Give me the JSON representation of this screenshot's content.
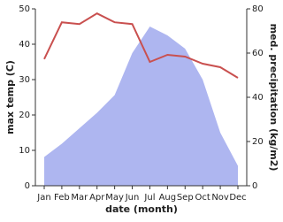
{
  "chart_data": {
    "type": "line",
    "xlabel": "date (month)",
    "ylabel": "max temp (C)",
    "y2label": "med. precipitation (kg/m2)",
    "categories": [
      "Jan",
      "Feb",
      "Mar",
      "Apr",
      "May",
      "Jun",
      "Jul",
      "Aug",
      "Sep",
      "Oct",
      "Nov",
      "Dec"
    ],
    "series": [
      {
        "type": "area",
        "axis": "y2",
        "color": "#aeb6f0",
        "values": [
          13,
          19,
          26,
          33,
          41,
          60,
          72,
          68,
          62,
          48,
          24,
          9
        ]
      },
      {
        "type": "line",
        "axis": "y",
        "color": "#c9504f",
        "values": [
          35.8,
          46.2,
          45.7,
          48.7,
          46.2,
          45.7,
          35,
          37,
          36.5,
          34.5,
          33.5,
          30.5
        ]
      }
    ],
    "ylim": [
      0,
      50
    ],
    "yticks": [
      0,
      10,
      20,
      30,
      40,
      50
    ],
    "y2lim": [
      0,
      80
    ],
    "y2ticks": [
      0,
      20,
      40,
      60,
      80
    ]
  }
}
